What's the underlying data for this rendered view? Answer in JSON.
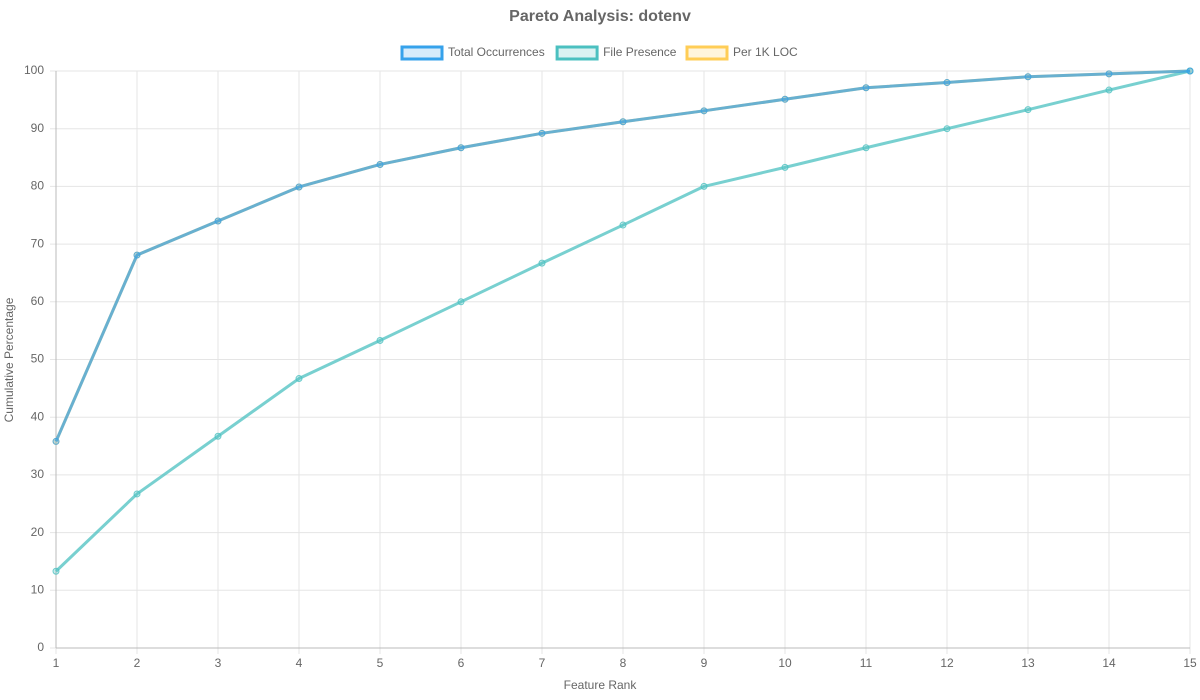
{
  "chart_data": {
    "type": "line",
    "title": "Pareto Analysis: dotenv",
    "x_label": "Feature Rank",
    "y_label": "Cumulative Percentage",
    "x": [
      1,
      2,
      3,
      4,
      5,
      6,
      7,
      8,
      9,
      10,
      11,
      12,
      13,
      14,
      15
    ],
    "series": [
      {
        "name": "Total Occurrences",
        "color": "#36a2eb",
        "values": [
          35.8,
          68.1,
          74.0,
          79.9,
          83.8,
          86.7,
          89.2,
          91.2,
          93.1,
          95.1,
          97.1,
          98.0,
          99.0,
          99.5,
          100
        ]
      },
      {
        "name": "File Presence",
        "color": "#4bc0c0",
        "values": [
          13.3,
          26.7,
          36.7,
          46.7,
          53.3,
          60.0,
          66.7,
          73.3,
          80.0,
          83.3,
          86.7,
          90.0,
          93.3,
          96.7,
          100
        ]
      },
      {
        "name": "Per 1K LOC",
        "color": "#ffcd56",
        "values": [
          35.8,
          68.1,
          74.0,
          79.9,
          83.8,
          86.7,
          89.2,
          91.2,
          93.1,
          95.1,
          97.1,
          98.0,
          99.0,
          99.5,
          100
        ]
      }
    ],
    "xlim": [
      1,
      15
    ],
    "xticks": [
      1,
      2,
      3,
      4,
      5,
      6,
      7,
      8,
      9,
      10,
      11,
      12,
      13,
      14,
      15
    ],
    "ylim": [
      0,
      100
    ],
    "yticks": [
      0,
      10,
      20,
      30,
      40,
      50,
      60,
      70,
      80,
      90,
      100
    ],
    "grid": true,
    "legend": "top"
  }
}
